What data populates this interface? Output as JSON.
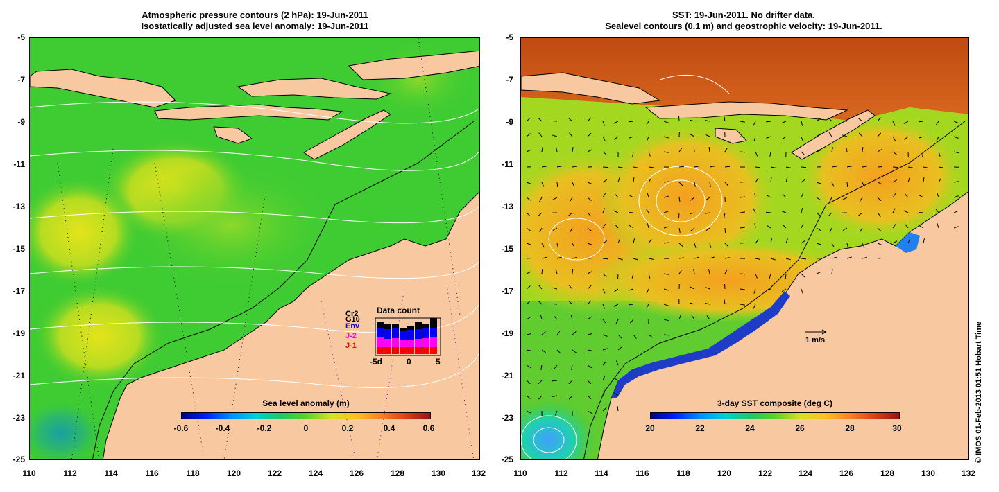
{
  "left": {
    "title_line1": "Atmospheric pressure contours (2 hPa): 19-Jun-2011",
    "title_line2": "Isostatically adjusted sea level anomaly: 19-Jun-2011",
    "colorbar_label": "Sea level anomaly (m)",
    "colorbar_ticks": [
      "-0.6",
      "-0.4",
      "-0.2",
      "0",
      "0.2",
      "0.4",
      "0.6"
    ],
    "legend": {
      "items": [
        "Cr2",
        "G10",
        "Env",
        "J-2",
        "J-1"
      ],
      "colors": [
        "#000000",
        "#000000",
        "#0000ff",
        "#ff00ff",
        "#ff0000"
      ]
    },
    "inset": {
      "title": "Data count",
      "x_ticks": [
        "-5d",
        "0",
        "5"
      ]
    }
  },
  "right": {
    "title_line1": "SST: 19-Jun-2011. No drifter data.",
    "title_line2": "Sealevel contours (0.1 m) and geostrophic velocity: 19-Jun-2011.",
    "colorbar_label": "3-day SST composite (deg C)",
    "colorbar_ticks": [
      "20",
      "22",
      "24",
      "26",
      "28",
      "30"
    ],
    "scale_label": "1 m/s"
  },
  "axes": {
    "y_ticks": [
      "-5",
      "-7",
      "-9",
      "-11",
      "-13",
      "-15",
      "-17",
      "-19",
      "-21",
      "-23",
      "-25"
    ],
    "x_ticks": [
      "110",
      "112",
      "114",
      "116",
      "118",
      "120",
      "122",
      "124",
      "126",
      "128",
      "130",
      "132"
    ]
  },
  "copyright": "© IMOS 01-Feb-2013 01:51 Hobart Time",
  "colors": {
    "land": "#f8c9a0",
    "ocean_left": "#3fcc32",
    "ocean_right_warm": "#f0a020",
    "ocean_right_hot": "#c8501a",
    "cool": "#1e8cf0"
  }
}
